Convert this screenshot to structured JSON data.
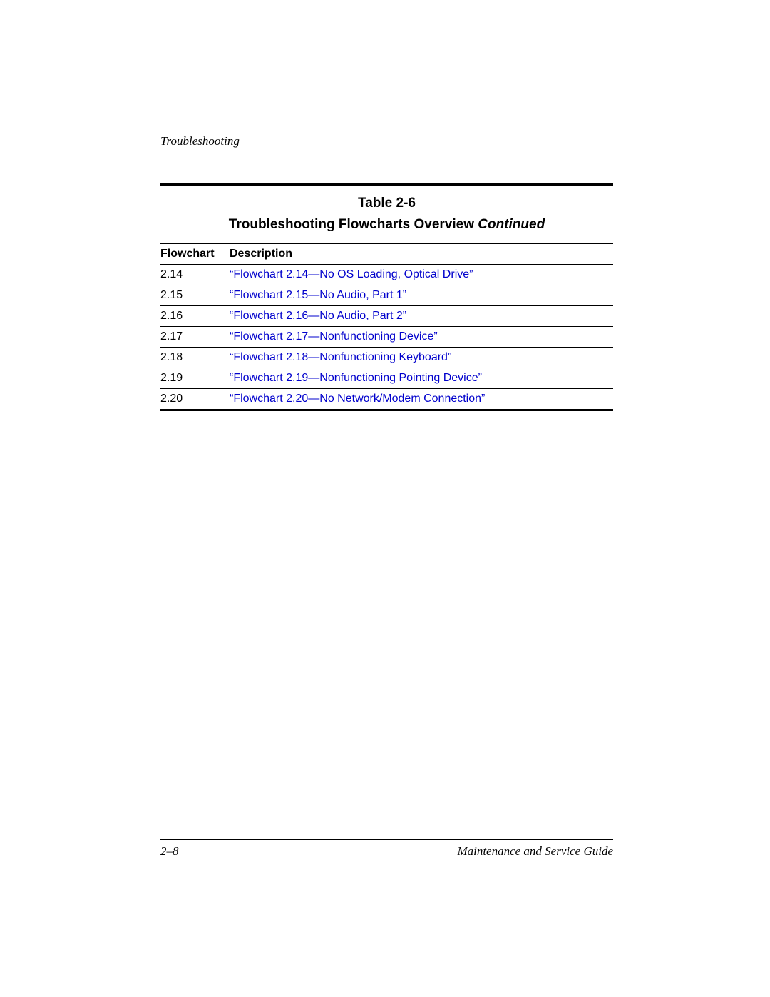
{
  "header": {
    "section": "Troubleshooting"
  },
  "table": {
    "number": "Table 2-6",
    "title_main": "Troubleshooting Flowcharts Overview ",
    "title_continued": "Continued",
    "columns": [
      "Flowchart",
      "Description"
    ],
    "rows": [
      {
        "id": "2.14",
        "desc": "“Flowchart 2.14—No OS Loading, Optical Drive”"
      },
      {
        "id": "2.15",
        "desc": "“Flowchart 2.15—No Audio, Part 1”"
      },
      {
        "id": "2.16",
        "desc": "“Flowchart 2.16—No Audio, Part 2”"
      },
      {
        "id": "2.17",
        "desc": "“Flowchart 2.17—Nonfunctioning Device”"
      },
      {
        "id": "2.18",
        "desc": "“Flowchart 2.18—Nonfunctioning Keyboard”"
      },
      {
        "id": "2.19",
        "desc": "“Flowchart 2.19—Nonfunctioning Pointing Device”"
      },
      {
        "id": "2.20",
        "desc": "“Flowchart 2.20—No Network/Modem Connection”"
      }
    ],
    "link_color": "#0000cc",
    "text_color": "#000000",
    "rule_color": "#000000"
  },
  "footer": {
    "page_num": "2–8",
    "book_title": "Maintenance and Service Guide"
  }
}
